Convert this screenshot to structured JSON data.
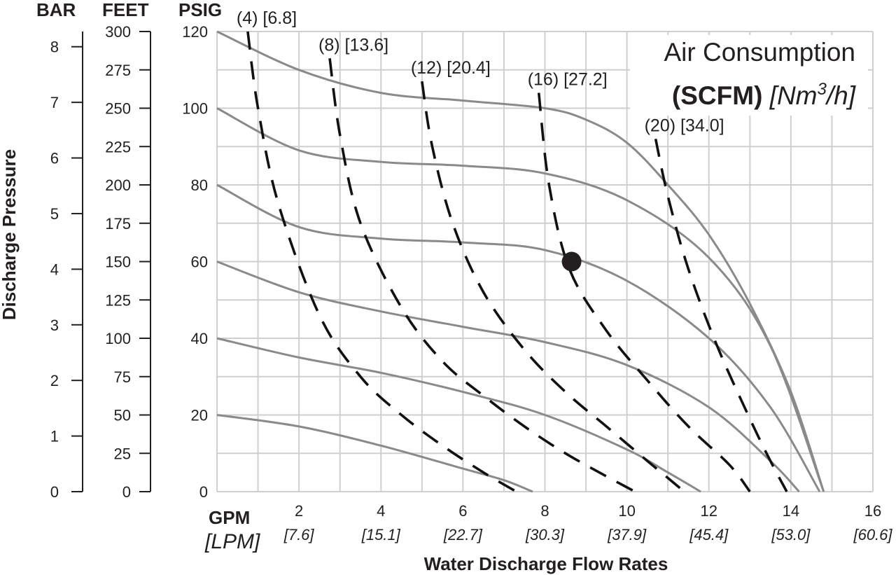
{
  "chart_data": {
    "type": "line",
    "title_line1": "Air Consumption",
    "title_unit_bold": "(SCFM)",
    "title_unit_metric": "[Nm",
    "title_unit_sup": "3",
    "title_unit_tail": "/h]",
    "xlabel": "Water Discharge Flow Rates",
    "xunit_primary": "GPM",
    "xunit_secondary": "[LPM]",
    "ylabel": "Discharge Pressure",
    "axis_headers": {
      "bar": "BAR",
      "feet": "FEET",
      "psig": "PSIG"
    },
    "xlim": [
      0,
      16
    ],
    "ylim": [
      0,
      120
    ],
    "x_ticks": [
      {
        "gpm": "2",
        "lpm": "[7.6]"
      },
      {
        "gpm": "4",
        "lpm": "[15.1]"
      },
      {
        "gpm": "6",
        "lpm": "[22.7]"
      },
      {
        "gpm": "8",
        "lpm": "[30.3]"
      },
      {
        "gpm": "10",
        "lpm": "[37.9]"
      },
      {
        "gpm": "12",
        "lpm": "[45.4]"
      },
      {
        "gpm": "14",
        "lpm": "[53.0]"
      },
      {
        "gpm": "16",
        "lpm": "[60.6]"
      }
    ],
    "psig_ticks": [
      "0",
      "20",
      "40",
      "60",
      "80",
      "100",
      "120"
    ],
    "feet_ticks": [
      "0",
      "25",
      "50",
      "75",
      "100",
      "125",
      "150",
      "175",
      "200",
      "225",
      "250",
      "275",
      "300"
    ],
    "bar_ticks": [
      "0",
      "1",
      "2",
      "3",
      "4",
      "5",
      "6",
      "7",
      "8"
    ],
    "grid": true,
    "pressure_curves": [
      {
        "x": [
          0,
          2,
          4,
          6,
          7,
          7.7
        ],
        "y": [
          20,
          17,
          12,
          6,
          3,
          0
        ]
      },
      {
        "x": [
          0,
          2,
          4,
          6,
          8,
          10,
          11,
          11.8
        ],
        "y": [
          40,
          35,
          31,
          26,
          20,
          11,
          5,
          0
        ]
      },
      {
        "x": [
          0,
          2,
          4,
          6,
          8,
          10,
          12,
          13.5,
          14.2
        ],
        "y": [
          60,
          52,
          47,
          43,
          39,
          33,
          22,
          8,
          0
        ]
      },
      {
        "x": [
          0,
          2,
          4,
          6,
          8,
          10,
          12,
          13.5,
          14.7
        ],
        "y": [
          80,
          69,
          66,
          65,
          63,
          55,
          40,
          22,
          0
        ]
      },
      {
        "x": [
          0,
          2,
          4,
          6,
          8,
          10,
          12,
          13.5,
          14.8
        ],
        "y": [
          100,
          89,
          86,
          85,
          83,
          76,
          61,
          38,
          0
        ]
      },
      {
        "x": [
          0,
          2,
          4,
          6,
          8,
          9,
          10,
          11,
          12,
          13,
          14,
          14.8
        ],
        "y": [
          120,
          110,
          104,
          102,
          100,
          97,
          91,
          80,
          67,
          49,
          26,
          0
        ]
      }
    ],
    "air_curves": [
      {
        "label": "(4) [6.8]",
        "x": [
          0.75,
          1,
          1.5,
          2.5,
          3.5,
          4.5,
          5.5,
          6.5,
          7.3
        ],
        "y": [
          120,
          100,
          75,
          46,
          30,
          20,
          12,
          5,
          0
        ]
      },
      {
        "label": "(8) [13.6]",
        "x": [
          2.75,
          3,
          3.5,
          4.5,
          5.5,
          6.5,
          7.5,
          8.5,
          9.5,
          10.2
        ],
        "y": [
          113,
          93,
          70,
          48,
          34,
          25,
          17,
          10,
          4,
          0
        ]
      },
      {
        "label": "(12) [20.4]",
        "x": [
          5,
          5.25,
          5.75,
          6.5,
          7.5,
          8.5,
          9.5,
          10.5,
          11.4
        ],
        "y": [
          107,
          90,
          70,
          52,
          37,
          26,
          17,
          8,
          0
        ]
      },
      {
        "label": "(16) [27.2]",
        "x": [
          7.85,
          8.1,
          8.6,
          9.5,
          10.5,
          11.5,
          12.5,
          13
        ],
        "y": [
          104,
          80,
          58,
          42,
          29,
          17,
          7,
          0
        ]
      },
      {
        "label": "(20) [34.0]",
        "x": [
          10.7,
          11,
          11.5,
          12.2,
          13,
          13.5,
          13.9
        ],
        "y": [
          92,
          77,
          58,
          38,
          19,
          8,
          0
        ]
      }
    ],
    "operating_point": {
      "x": 8.65,
      "y": 60
    }
  }
}
